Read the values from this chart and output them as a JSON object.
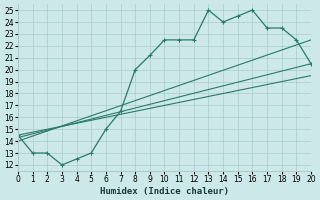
{
  "xlabel": "Humidex (Indice chaleur)",
  "bg_color": "#cce8e8",
  "grid_color": "#aacccc",
  "line_color": "#2a7a6a",
  "xlim": [
    0,
    20
  ],
  "ylim": [
    11.5,
    25.5
  ],
  "xticks": [
    0,
    1,
    2,
    3,
    4,
    5,
    6,
    7,
    8,
    9,
    10,
    11,
    12,
    13,
    14,
    15,
    16,
    17,
    18,
    19,
    20
  ],
  "yticks": [
    12,
    13,
    14,
    15,
    16,
    17,
    18,
    19,
    20,
    21,
    22,
    23,
    24,
    25
  ],
  "line1_x": [
    0,
    1,
    2,
    3,
    4,
    5,
    6,
    7,
    8,
    9,
    10,
    11,
    12,
    13,
    14,
    15,
    16,
    17,
    18,
    19,
    20
  ],
  "line1_y": [
    14.5,
    13.0,
    13.0,
    12.0,
    12.5,
    13.0,
    15.0,
    16.5,
    20.0,
    21.2,
    22.5,
    22.5,
    22.5,
    25.0,
    24.0,
    24.5,
    25.0,
    23.5,
    23.5,
    22.5,
    20.5
  ],
  "line2_x": [
    0,
    20
  ],
  "line2_y": [
    14.0,
    22.5
  ],
  "line3_x": [
    0,
    20
  ],
  "line3_y": [
    14.3,
    20.5
  ],
  "line4_x": [
    0,
    20
  ],
  "line4_y": [
    14.5,
    19.5
  ]
}
